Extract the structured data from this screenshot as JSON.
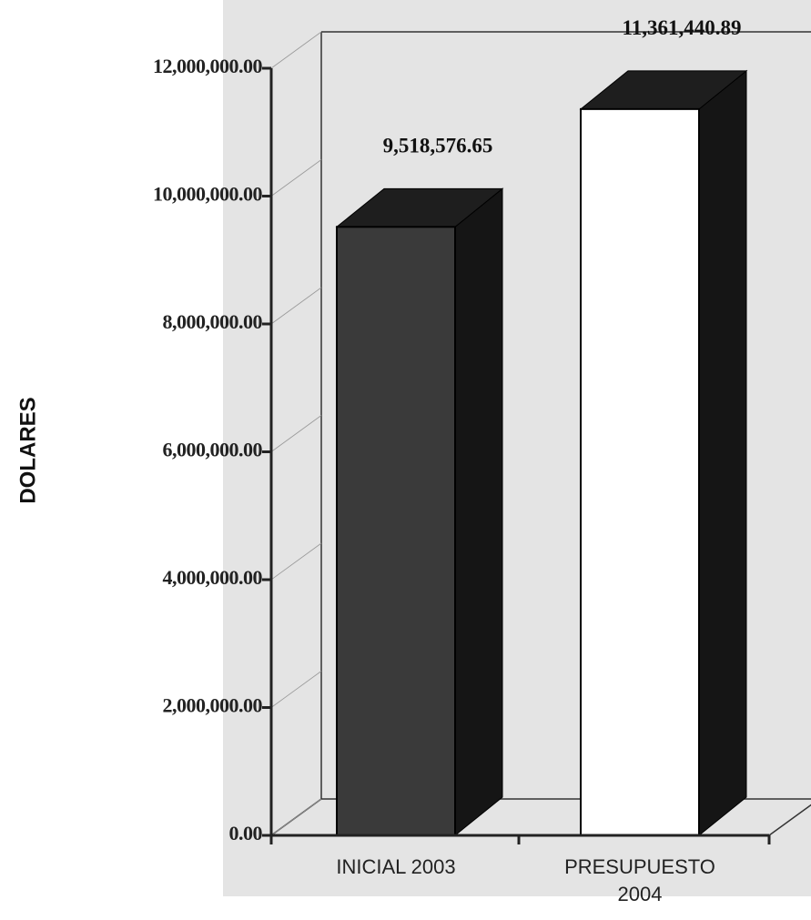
{
  "chart_data": {
    "type": "bar3d",
    "y_label": "DOLARES",
    "categories": [
      "INICIAL 2003",
      "PRESUPUESTO 2004"
    ],
    "values": [
      9518576.65,
      11361440.89
    ],
    "value_labels": [
      "9,518,576.65",
      "11,361,440.89"
    ],
    "colors": [
      "#3a3a3a",
      "#ffffff"
    ],
    "ylim": [
      0,
      12000000
    ],
    "yticks": [
      {
        "value": 0,
        "label": "0.00"
      },
      {
        "value": 2000000,
        "label": "2,000,000.00"
      },
      {
        "value": 4000000,
        "label": "4,000,000.00"
      },
      {
        "value": 6000000,
        "label": "6,000,000.00"
      },
      {
        "value": 8000000,
        "label": "8,000,000.00"
      },
      {
        "value": 10000000,
        "label": "10,000,000.00"
      },
      {
        "value": 12000000,
        "label": "12,000,000.00"
      }
    ]
  }
}
